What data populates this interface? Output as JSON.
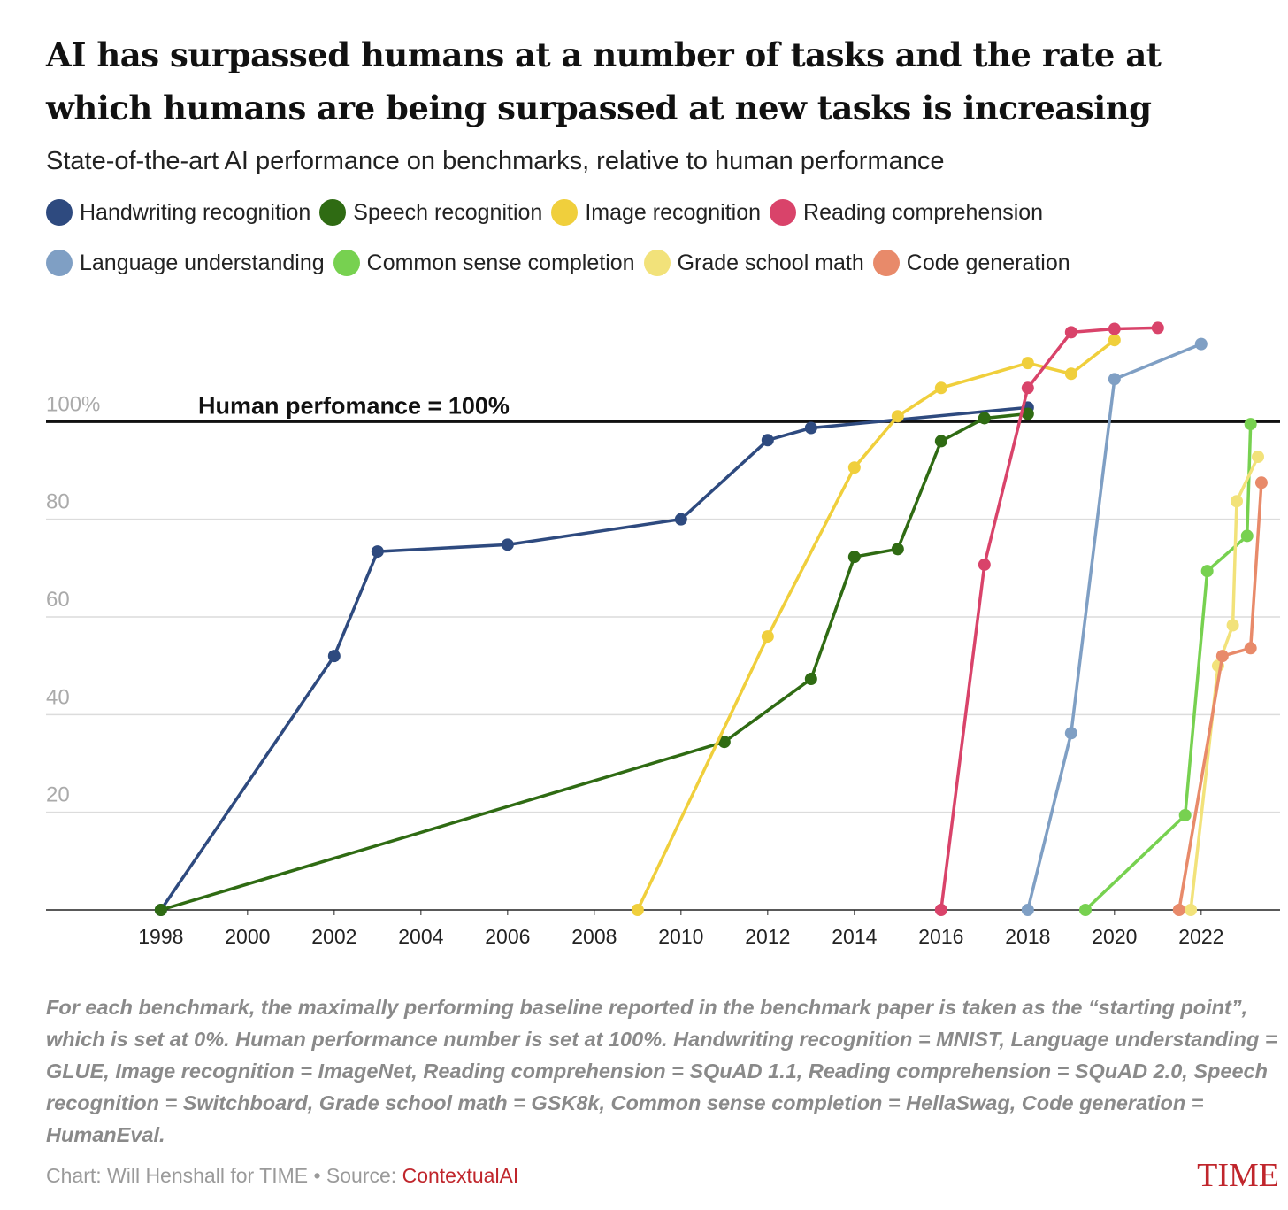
{
  "chart_data": {
    "type": "line",
    "title": "AI has surpassed humans at a number of tasks and the rate at which humans are being surpassed at new tasks is increasing",
    "subtitle": "State-of-the-art AI performance on benchmarks, relative to human performance",
    "xlim": [
      1995.35,
      2023.82
    ],
    "ylim": [
      0,
      120
    ],
    "xticks": [
      1998,
      2000,
      2002,
      2004,
      2006,
      2008,
      2010,
      2012,
      2014,
      2016,
      2018,
      2020,
      2022
    ],
    "yticks": [
      20,
      40,
      60,
      80,
      {
        "value": 100,
        "label": "100%"
      }
    ],
    "grid": true,
    "reference_line": {
      "value": 100,
      "label": "Human perfomance = 100%"
    },
    "series": [
      {
        "name": "Handwriting recognition",
        "color": "#2e4a7f",
        "x": [
          1998,
          2002,
          2003,
          2006,
          2010,
          2012,
          2013,
          2018
        ],
        "values": [
          0,
          52,
          73.4,
          74.8,
          80,
          96.2,
          98.7,
          102.9
        ]
      },
      {
        "name": "Speech recognition",
        "color": "#2f6b13",
        "x": [
          1998,
          2011,
          2013,
          2014,
          2015,
          2016,
          2017,
          2018
        ],
        "values": [
          0,
          34.4,
          47.3,
          72.3,
          73.9,
          96,
          100.7,
          101.6
        ]
      },
      {
        "name": "Image recognition",
        "color": "#f0cf3c",
        "x": [
          2009,
          2012,
          2014,
          2015,
          2016,
          2018,
          2019,
          2020
        ],
        "values": [
          0,
          56,
          90.6,
          101.1,
          106.9,
          112,
          109.8,
          116.7
        ]
      },
      {
        "name": "Reading comprehension",
        "color": "#d9436a",
        "x": [
          2016,
          2017,
          2018,
          2019,
          2020,
          2021
        ],
        "values": [
          0,
          70.7,
          106.9,
          118.3,
          119,
          119.2
        ]
      },
      {
        "name": "Language understanding",
        "color": "#7f9fc4",
        "x": [
          2018,
          2019,
          2020,
          2022
        ],
        "values": [
          0,
          36.2,
          108.7,
          115.9
        ]
      },
      {
        "name": "Common sense completion",
        "color": "#77d150",
        "x": [
          2019.33,
          2021.63,
          2022.14,
          2023.06,
          2023.14
        ],
        "values": [
          0,
          19.4,
          69.4,
          76.6,
          99.5
        ]
      },
      {
        "name": "Grade school math",
        "color": "#f2e27a",
        "x": [
          2021.76,
          2022.39,
          2022.73,
          2022.82,
          2023.31
        ],
        "values": [
          0,
          50,
          58.3,
          83.7,
          92.8
        ]
      },
      {
        "name": "Code generation",
        "color": "#e88a6a",
        "x": [
          2021.49,
          2022.49,
          2023.14,
          2023.39
        ],
        "values": [
          0,
          52,
          53.6,
          87.5
        ]
      }
    ],
    "note": "For each benchmark, the maximally performing baseline reported in the benchmark paper is taken as the “starting point”, which is set at 0%. Human performance number is set at 100%. Handwriting recognition = MNIST, Language understanding = GLUE, Image recognition = ImageNet, Reading comprehension = SQuAD 1.1, Reading comprehension = SQuAD 2.0, Speech recognition = Switchboard, Grade school math = GSK8k, Common sense completion = HellaSwag, Code generation = HumanEval.",
    "credit": "Chart: Will Henshall for TIME • Source:",
    "source": "ContextualAI",
    "logo": "TIME"
  }
}
